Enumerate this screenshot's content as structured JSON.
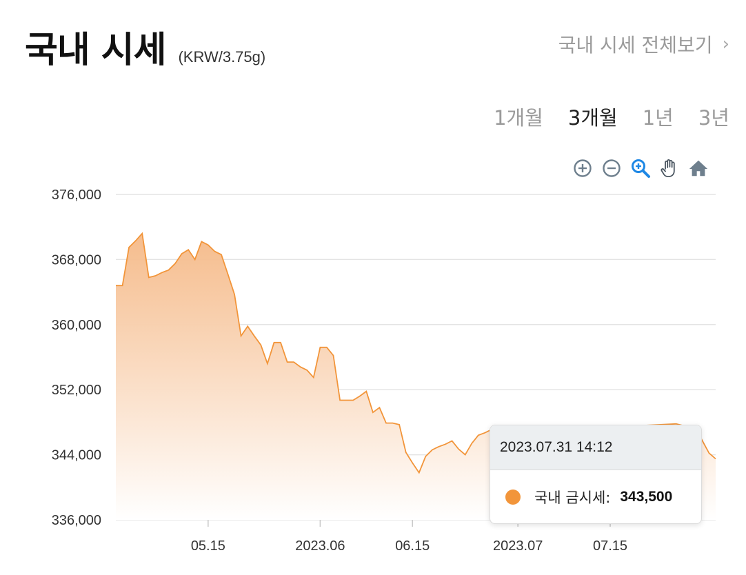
{
  "header": {
    "title": "국내 시세",
    "unit": "(KRW/3.75g)",
    "more_link": "국내 시세 전체보기",
    "more_chevron": "›"
  },
  "range_tabs": [
    {
      "label": "1개월",
      "active": false
    },
    {
      "label": "3개월",
      "active": true
    },
    {
      "label": "1년",
      "active": false
    },
    {
      "label": "3년",
      "active": false
    }
  ],
  "toolbar": {
    "icons": [
      "zoom-in-icon",
      "zoom-out-icon",
      "selection-zoom-icon",
      "pan-hand-icon",
      "home-reset-icon"
    ],
    "active_icon": "selection-zoom-icon",
    "icon_color": "#6e7f8d",
    "active_color": "#1e88e5"
  },
  "chart_data": {
    "type": "area",
    "series": [
      {
        "name": "국내 금시세",
        "color": "#F2953A",
        "points": [
          [
            "2023-05-01",
            364800
          ],
          [
            "2023-05-02",
            364800
          ],
          [
            "2023-05-03",
            369500
          ],
          [
            "2023-05-04",
            370300
          ],
          [
            "2023-05-05",
            371200
          ],
          [
            "2023-05-06",
            365800
          ],
          [
            "2023-05-07",
            366000
          ],
          [
            "2023-05-08",
            366400
          ],
          [
            "2023-05-09",
            366700
          ],
          [
            "2023-05-10",
            367500
          ],
          [
            "2023-05-11",
            368700
          ],
          [
            "2023-05-12",
            369200
          ],
          [
            "2023-05-13",
            368000
          ],
          [
            "2023-05-14",
            370200
          ],
          [
            "2023-05-15",
            369800
          ],
          [
            "2023-05-16",
            369000
          ],
          [
            "2023-05-17",
            368600
          ],
          [
            "2023-05-18",
            366200
          ],
          [
            "2023-05-19",
            363700
          ],
          [
            "2023-05-20",
            358600
          ],
          [
            "2023-05-21",
            359800
          ],
          [
            "2023-05-22",
            358600
          ],
          [
            "2023-05-23",
            357500
          ],
          [
            "2023-05-24",
            355200
          ],
          [
            "2023-05-25",
            357800
          ],
          [
            "2023-05-26",
            357800
          ],
          [
            "2023-05-27",
            355400
          ],
          [
            "2023-05-28",
            355400
          ],
          [
            "2023-05-29",
            354800
          ],
          [
            "2023-05-30",
            354400
          ],
          [
            "2023-05-31",
            353500
          ],
          [
            "2023-06-01",
            357200
          ],
          [
            "2023-06-02",
            357200
          ],
          [
            "2023-06-03",
            356200
          ],
          [
            "2023-06-04",
            350700
          ],
          [
            "2023-06-05",
            350700
          ],
          [
            "2023-06-06",
            350700
          ],
          [
            "2023-06-07",
            351200
          ],
          [
            "2023-06-08",
            351800
          ],
          [
            "2023-06-09",
            349200
          ],
          [
            "2023-06-10",
            349800
          ],
          [
            "2023-06-11",
            347900
          ],
          [
            "2023-06-12",
            347900
          ],
          [
            "2023-06-13",
            347700
          ],
          [
            "2023-06-14",
            344300
          ],
          [
            "2023-06-15",
            343000
          ],
          [
            "2023-06-16",
            341800
          ],
          [
            "2023-06-17",
            343800
          ],
          [
            "2023-06-18",
            344600
          ],
          [
            "2023-06-19",
            345000
          ],
          [
            "2023-06-20",
            345300
          ],
          [
            "2023-06-21",
            345700
          ],
          [
            "2023-06-22",
            344700
          ],
          [
            "2023-06-23",
            344000
          ],
          [
            "2023-06-24",
            345400
          ],
          [
            "2023-06-25",
            346400
          ],
          [
            "2023-06-26",
            346700
          ],
          [
            "2023-06-27",
            347100
          ],
          [
            "2023-06-28",
            346600
          ],
          [
            "2023-06-29",
            346200
          ],
          [
            "2023-06-30",
            346800
          ],
          [
            "2023-07-01",
            347000
          ],
          [
            "2023-07-05",
            346900
          ],
          [
            "2023-07-10",
            346500
          ],
          [
            "2023-07-15",
            347000
          ],
          [
            "2023-07-20",
            347600
          ],
          [
            "2023-07-25",
            347800
          ],
          [
            "2023-07-28",
            347200
          ],
          [
            "2023-07-30",
            344200
          ],
          [
            "2023-07-31",
            343500
          ]
        ]
      }
    ],
    "x_range": [
      "2023-05-01",
      "2023-07-31"
    ],
    "x_ticks": [
      {
        "date": "2023-05-15",
        "label": "05.15"
      },
      {
        "date": "2023-06-01",
        "label": "2023.06"
      },
      {
        "date": "2023-06-15",
        "label": "06.15"
      },
      {
        "date": "2023-07-01",
        "label": "2023.07"
      },
      {
        "date": "2023-07-15",
        "label": "07.15"
      }
    ],
    "ylim": [
      336000,
      376000
    ],
    "y_ticks": [
      {
        "value": 376000,
        "label": "376,000"
      },
      {
        "value": 368000,
        "label": "368,000"
      },
      {
        "value": 360000,
        "label": "360,000"
      },
      {
        "value": 352000,
        "label": "352,000"
      },
      {
        "value": 344000,
        "label": "344,000"
      },
      {
        "value": 336000,
        "label": "336,000"
      }
    ],
    "grid": true,
    "gridline_color": "#e4e4e4",
    "fill_gradient": [
      "#F5B987",
      "#FFFFFF"
    ],
    "tooltip": {
      "datetime": "2023.07.31 14:12",
      "series_label": "국내 금시세:",
      "value_label": "343,500",
      "marker_color": "#F2953A"
    }
  }
}
